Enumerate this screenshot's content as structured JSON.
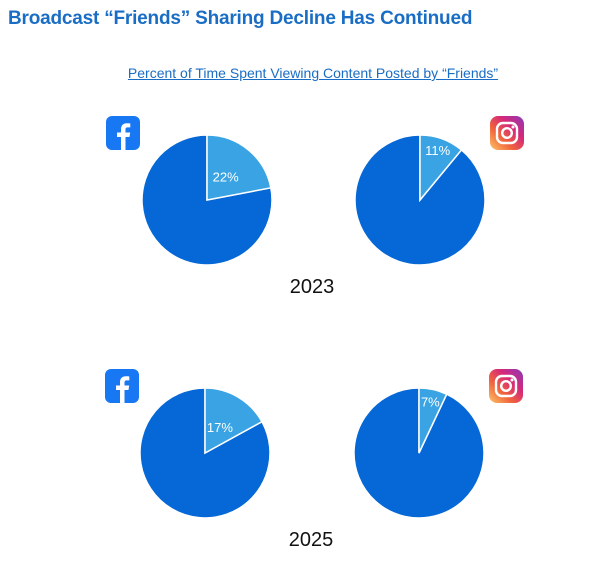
{
  "title": "Broadcast “Friends” Sharing Decline Has Continued",
  "subtitle": "Percent of Time Spent Viewing Content Posted by “Friends”",
  "colors": {
    "friends": "#3aa3e3",
    "other": "#0568d6",
    "facebook": "#1877f2"
  },
  "chart_data": [
    {
      "type": "pie",
      "year": "2023",
      "platform": "Facebook",
      "icon": "facebook-icon",
      "values": [
        22,
        78
      ],
      "label": "22%"
    },
    {
      "type": "pie",
      "year": "2023",
      "platform": "Instagram",
      "icon": "instagram-icon",
      "values": [
        11,
        89
      ],
      "label": "11%"
    },
    {
      "type": "pie",
      "year": "2025",
      "platform": "Facebook",
      "icon": "facebook-icon",
      "values": [
        17,
        83
      ],
      "label": "17%"
    },
    {
      "type": "pie",
      "year": "2025",
      "platform": "Instagram",
      "icon": "instagram-icon",
      "values": [
        7,
        93
      ],
      "label": "7%"
    }
  ],
  "years": [
    "2023",
    "2025"
  ]
}
